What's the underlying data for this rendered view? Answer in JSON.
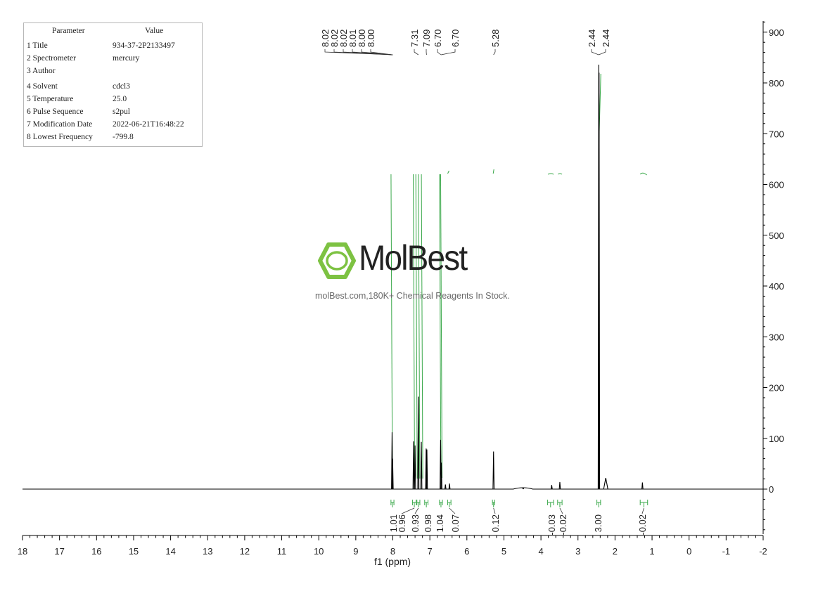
{
  "params": {
    "header": {
      "key": "Parameter",
      "value": "Value"
    },
    "rows": [
      {
        "key": "1 Title",
        "value": "934-37-2P2133497"
      },
      {
        "key": "2 Spectrometer",
        "value": "mercury"
      },
      {
        "key": "3 Author",
        "value": ""
      },
      {
        "key": "4 Solvent",
        "value": "cdcl3"
      },
      {
        "key": "5 Temperature",
        "value": "25.0"
      },
      {
        "key": "6 Pulse Sequence",
        "value": "s2pul"
      },
      {
        "key": "7 Modification Date",
        "value": "2022-06-21T16:48:22"
      },
      {
        "key": "8 Lowest Frequency",
        "value": "-799.8"
      }
    ]
  },
  "watermark": {
    "brand": "MolBest",
    "tagline": "molBest.com,180K+ Chemical Reagents In Stock.",
    "color": "#7dc242"
  },
  "chart_data": {
    "type": "line",
    "title": "",
    "xlabel": "f1 (ppm)",
    "ylabel": "",
    "xlim": [
      18,
      -2
    ],
    "ylim": [
      -90,
      920
    ],
    "x_ticks": [
      "18",
      "17",
      "16",
      "15",
      "14",
      "13",
      "12",
      "11",
      "10",
      "9",
      "8",
      "7",
      "6",
      "5",
      "4",
      "3",
      "2",
      "1",
      "0",
      "-1",
      "-2"
    ],
    "y_ticks": [
      "900",
      "800",
      "700",
      "600",
      "500",
      "400",
      "300",
      "200",
      "100",
      "0"
    ],
    "spectrum_color": "#000000",
    "integral_color": "#3aa84a",
    "peaks": [
      {
        "ppm": 8.02,
        "height": 112
      },
      {
        "ppm": 8.005,
        "height": 60
      },
      {
        "ppm": 7.44,
        "height": 94
      },
      {
        "ppm": 7.4,
        "height": 86
      },
      {
        "ppm": 7.31,
        "height": 182
      },
      {
        "ppm": 7.23,
        "height": 93
      },
      {
        "ppm": 7.1,
        "height": 80
      },
      {
        "ppm": 7.08,
        "height": 78
      },
      {
        "ppm": 6.71,
        "height": 97
      },
      {
        "ppm": 6.69,
        "height": 52
      },
      {
        "ppm": 6.58,
        "height": 9
      },
      {
        "ppm": 6.47,
        "height": 11
      },
      {
        "ppm": 5.28,
        "height": 74
      },
      {
        "ppm": 4.48,
        "height": 2
      },
      {
        "ppm": 3.71,
        "height": 8
      },
      {
        "ppm": 3.49,
        "height": 14
      },
      {
        "ppm": 2.44,
        "height": 836
      },
      {
        "ppm": 2.43,
        "height": 820
      },
      {
        "ppm": 2.25,
        "height": 22
      },
      {
        "ppm": 1.26,
        "height": 13
      }
    ],
    "peak_labels": {
      "groups": [
        {
          "labels": [
            "8.02",
            "8.02",
            "8.02",
            "8.01",
            "8.00",
            "8.00"
          ],
          "target_ppm": 8.0
        },
        {
          "labels": [
            "7.31"
          ],
          "target_ppm": 7.31
        },
        {
          "labels": [
            "7.09"
          ],
          "target_ppm": 7.09
        },
        {
          "labels": [
            "6.70",
            "6.70"
          ],
          "target_ppm": 6.7
        },
        {
          "labels": [
            "5.28"
          ],
          "target_ppm": 5.28
        },
        {
          "labels": [
            "2.44",
            "2.44"
          ],
          "target_ppm": 2.44
        }
      ]
    },
    "integrals": [
      {
        "value": "1.01",
        "from": 8.05,
        "to": 7.97
      },
      {
        "value": "0.96",
        "from": 7.47,
        "to": 7.37
      },
      {
        "value": "0.93",
        "from": 7.35,
        "to": 7.27
      },
      {
        "value": "0.98",
        "from": 7.14,
        "to": 7.05
      },
      {
        "value": "1.04",
        "from": 6.74,
        "to": 6.66
      },
      {
        "value": "0.07",
        "from": 6.52,
        "to": 6.43
      },
      {
        "value": "0.12",
        "from": 5.31,
        "to": 5.25
      },
      {
        "value": "-0.03",
        "from": 3.82,
        "to": 3.66
      },
      {
        "value": "-0.02",
        "from": 3.55,
        "to": 3.43
      },
      {
        "value": "3.00",
        "from": 2.49,
        "to": 2.39
      },
      {
        "value": "-0.02",
        "from": 1.32,
        "to": 1.12
      }
    ]
  }
}
